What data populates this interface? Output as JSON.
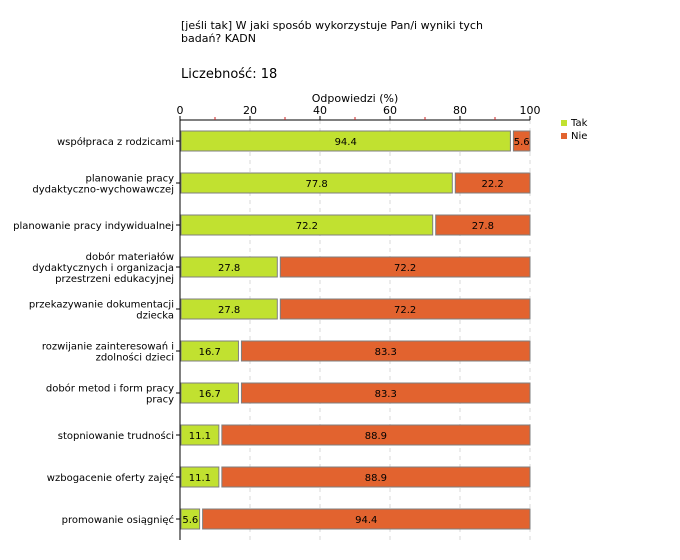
{
  "title": "[jeśli tak] W jaki sposób wykorzystuje Pan/i wyniki tych badań? KADN",
  "count_label": "Liczebność: 18",
  "chart_data": {
    "type": "bar",
    "orientation": "horizontal",
    "stacked": true,
    "xlabel": "Odpowiedzi (%)",
    "xlim": [
      0,
      100
    ],
    "xticks": [
      0,
      20,
      40,
      60,
      80,
      100
    ],
    "grid": true,
    "legend_position": "top-right",
    "categories": [
      [
        "współpraca z rodzicami"
      ],
      [
        "planowanie pracy",
        "dydaktyczno-wychowawczej"
      ],
      [
        "planowanie pracy indywidualnej"
      ],
      [
        "dobór materiałów",
        "dydaktycznych i organizacja",
        "przestrzeni edukacyjnej"
      ],
      [
        "przekazywanie dokumentacji",
        "dziecka"
      ],
      [
        "rozwijanie zainteresowań i",
        "zdolności dzieci"
      ],
      [
        "dobór metod i form pracy",
        "pracy"
      ],
      [
        "stopniowanie trudności"
      ],
      [
        "wzbogacenie oferty zajęć"
      ],
      [
        "promowanie osiągnięć"
      ]
    ],
    "series": [
      {
        "name": "Tak",
        "color": "#c1e130",
        "values": [
          94.4,
          77.8,
          72.2,
          27.8,
          27.8,
          16.7,
          16.7,
          11.1,
          11.1,
          5.6
        ]
      },
      {
        "name": "Nie",
        "color": "#e2632f",
        "values": [
          5.6,
          22.2,
          27.8,
          72.2,
          72.2,
          83.3,
          83.3,
          88.9,
          88.9,
          94.4
        ]
      }
    ]
  }
}
